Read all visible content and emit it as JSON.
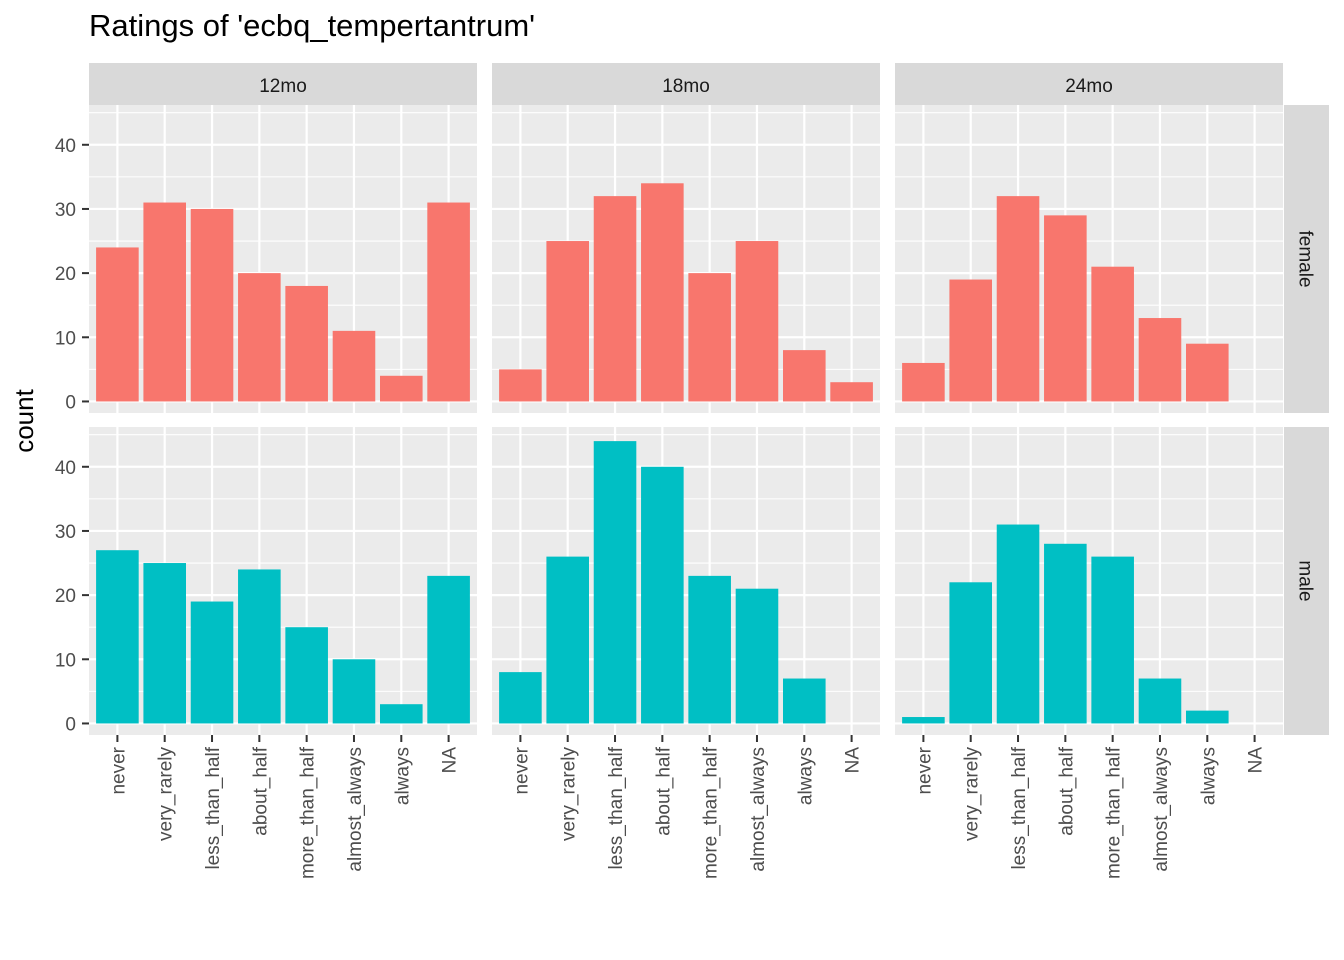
{
  "chart_data": {
    "type": "bar",
    "title": "Ratings of 'ecbq_tempertantrum'",
    "xlabel": "",
    "ylabel": "count",
    "ylim": [
      -1.8,
      46.2
    ],
    "yticks": [
      0,
      10,
      20,
      30,
      40
    ],
    "grid": true,
    "legend": "none",
    "categories": [
      "never",
      "very_rarely",
      "less_than_half",
      "about_half",
      "more_than_half",
      "almost_always",
      "always",
      "NA"
    ],
    "columns": [
      "12mo",
      "18mo",
      "24mo"
    ],
    "rows": [
      "female",
      "male"
    ],
    "colors": {
      "female": "#F8766D",
      "male": "#00BFC4"
    },
    "panels": [
      {
        "column": "12mo",
        "row": "female",
        "values": [
          24,
          31,
          30,
          20,
          18,
          11,
          4,
          31
        ]
      },
      {
        "column": "18mo",
        "row": "female",
        "values": [
          5,
          25,
          32,
          34,
          20,
          25,
          8,
          3
        ]
      },
      {
        "column": "24mo",
        "row": "female",
        "values": [
          6,
          19,
          32,
          29,
          21,
          13,
          9,
          null
        ]
      },
      {
        "column": "12mo",
        "row": "male",
        "values": [
          27,
          25,
          19,
          24,
          15,
          10,
          3,
          23
        ]
      },
      {
        "column": "18mo",
        "row": "male",
        "values": [
          8,
          26,
          44,
          40,
          23,
          21,
          7,
          null
        ]
      },
      {
        "column": "24mo",
        "row": "male",
        "values": [
          1,
          22,
          31,
          28,
          26,
          7,
          2,
          null
        ]
      }
    ]
  }
}
